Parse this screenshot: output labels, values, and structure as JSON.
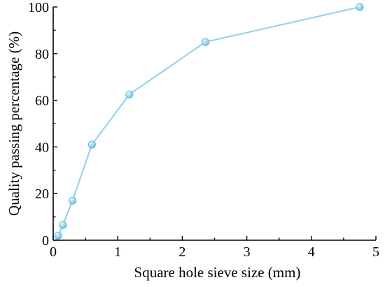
{
  "chart_data": {
    "type": "line",
    "title": "",
    "xlabel": "Square hole sieve size (mm)",
    "ylabel": "Quality passing percentage (%)",
    "xlim": [
      0,
      5
    ],
    "ylim": [
      0,
      100
    ],
    "xticks": [
      0,
      1,
      2,
      3,
      4,
      5
    ],
    "yticks": [
      0,
      20,
      40,
      60,
      80,
      100
    ],
    "grid": false,
    "legend": "none",
    "colors": {
      "line": "#8fd0ec",
      "marker_fill": "#6cc0e6",
      "marker_highlight": "#e8f6fc",
      "marker_edge": "#4aa8d6"
    },
    "series": [
      {
        "x": [
          0.075,
          0.15,
          0.3,
          0.6,
          1.18,
          2.36,
          4.75
        ],
        "y": [
          2,
          6.5,
          17,
          41,
          62.5,
          85,
          100
        ]
      }
    ]
  }
}
